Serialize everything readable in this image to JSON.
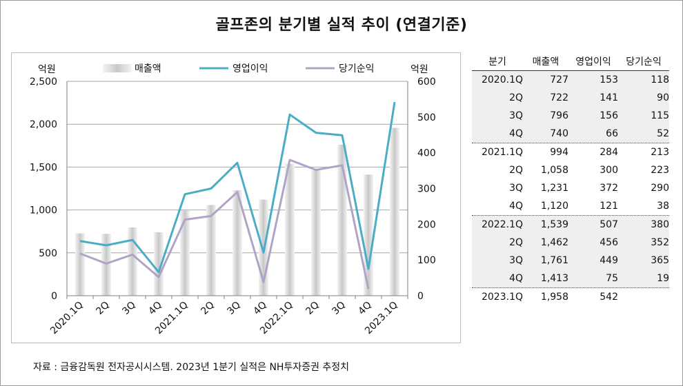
{
  "title": "골프존의 분기별 실적 추이 (연결기준)",
  "source": "자료 : 금융감독원 전자공시시스템. 2023년 1분기 실적은 NH투자증권 추정치",
  "table": {
    "headers": [
      "분기",
      "매출액",
      "영업이익",
      "당기순익"
    ],
    "rows": [
      [
        "2020.1Q",
        "727",
        "153",
        "118"
      ],
      [
        "2Q",
        "722",
        "141",
        "90"
      ],
      [
        "3Q",
        "796",
        "156",
        "115"
      ],
      [
        "4Q",
        "740",
        "66",
        "52"
      ],
      [
        "2021.1Q",
        "994",
        "284",
        "213"
      ],
      [
        "2Q",
        "1,058",
        "300",
        "223"
      ],
      [
        "3Q",
        "1,231",
        "372",
        "290"
      ],
      [
        "4Q",
        "1,120",
        "121",
        "38"
      ],
      [
        "2022.1Q",
        "1,539",
        "507",
        "380"
      ],
      [
        "2Q",
        "1,462",
        "456",
        "352"
      ],
      [
        "3Q",
        "1,761",
        "449",
        "365"
      ],
      [
        "4Q",
        "1,413",
        "75",
        "19"
      ],
      [
        "2023.1Q",
        "1,958",
        "542",
        ""
      ]
    ]
  },
  "chart_data": {
    "type": "bar",
    "categories": [
      "2020.1Q",
      "2Q",
      "3Q",
      "4Q",
      "2021.1Q",
      "2Q",
      "3Q",
      "4Q",
      "2022.1Q",
      "2Q",
      "3Q",
      "4Q",
      "2023.1Q"
    ],
    "left_axis_unit": "억원",
    "right_axis_unit": "억원",
    "ylim_left": [
      0,
      2500
    ],
    "yticks_left": [
      "0",
      "500",
      "1,000",
      "1,500",
      "2,000",
      "2,500"
    ],
    "ylim_right": [
      0,
      600
    ],
    "yticks_right": [
      "0",
      "100",
      "200",
      "300",
      "400",
      "500",
      "600"
    ],
    "grid": true,
    "legend_position": "top",
    "series": [
      {
        "name": "매출액",
        "type": "bar",
        "axis": "left",
        "color": "#d9d9d9",
        "values": [
          727,
          722,
          796,
          740,
          994,
          1058,
          1231,
          1120,
          1539,
          1462,
          1761,
          1413,
          1958
        ]
      },
      {
        "name": "영업이익",
        "type": "line",
        "axis": "right",
        "color": "#4bacc6",
        "values": [
          153,
          141,
          156,
          66,
          284,
          300,
          372,
          121,
          507,
          456,
          449,
          75,
          542
        ]
      },
      {
        "name": "당기순익",
        "type": "line",
        "axis": "right",
        "color": "#b3a2c7",
        "values": [
          118,
          90,
          115,
          52,
          213,
          223,
          290,
          38,
          380,
          352,
          365,
          19,
          null
        ]
      }
    ]
  }
}
